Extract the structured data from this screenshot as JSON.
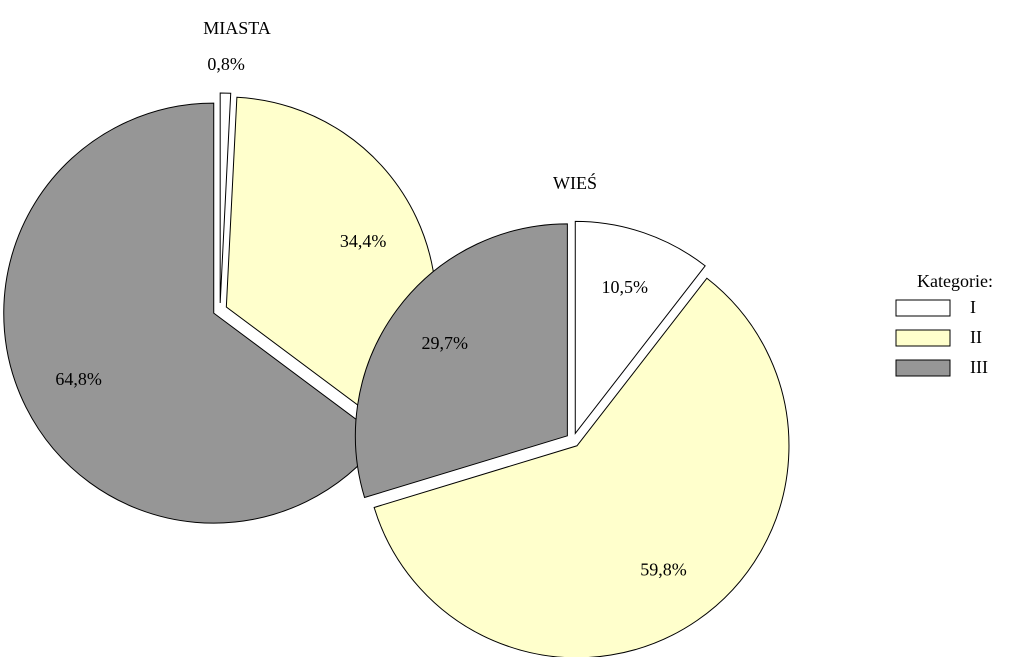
{
  "chart_data": [
    {
      "type": "pie",
      "title": "MIASTA",
      "values": [
        0.8,
        34.4,
        64.8
      ],
      "value_labels": [
        "0,8%",
        "34,4%",
        "64,8%"
      ]
    },
    {
      "type": "pie",
      "title": "WIEŚ",
      "values": [
        10.5,
        59.8,
        29.7
      ],
      "value_labels": [
        "10,5%",
        "59,8%",
        "29,7%"
      ]
    }
  ],
  "legend": {
    "title": "Kategorie:",
    "labels": [
      "I",
      "II",
      "III"
    ],
    "colors": [
      "#ffffff",
      "#ffffcc",
      "#969696"
    ]
  }
}
